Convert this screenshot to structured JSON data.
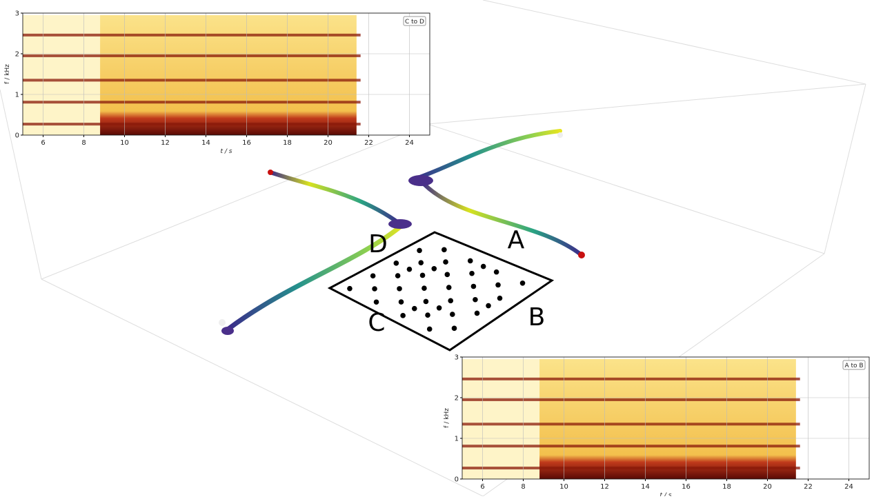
{
  "chart_data": [
    {
      "type": "spectrogram",
      "legend": "C to D",
      "xlabel": "t / s",
      "ylabel": "f / kHz",
      "xlim": [
        5,
        25
      ],
      "ylim": [
        0,
        3
      ],
      "xticks": [
        6,
        8,
        10,
        12,
        14,
        16,
        18,
        20,
        22,
        24
      ],
      "yticks": [
        0,
        1,
        2,
        3
      ],
      "grid": true
    },
    {
      "type": "spectrogram",
      "legend": "A to B",
      "xlabel": "t / s",
      "ylabel": "f / kHz",
      "xlim": [
        5,
        25
      ],
      "ylim": [
        0,
        3
      ],
      "xticks": [
        6,
        8,
        10,
        12,
        14,
        16,
        18,
        20,
        22,
        24
      ],
      "yticks": [
        0,
        1,
        2,
        3
      ],
      "grid": true
    }
  ],
  "scene": {
    "labels": [
      "A",
      "B",
      "C",
      "D"
    ]
  }
}
